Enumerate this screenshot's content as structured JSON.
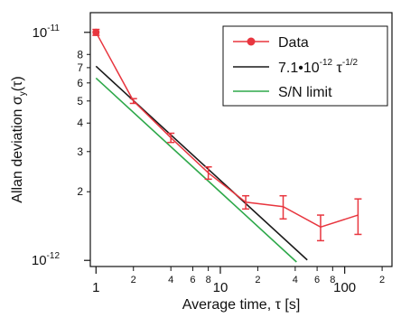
{
  "chart_data": {
    "type": "scatter",
    "xlabel_main": "Average time, ",
    "xlabel_tau": "τ",
    "xlabel_unit": " [s]",
    "ylabel_main": "Allan deviation ",
    "ylabel_sigma": "σ",
    "ylabel_sub": "y",
    "ylabel_arg": "(τ)",
    "x_scale": "log",
    "y_scale": "log",
    "xlim": [
      0.9,
      240
    ],
    "ylim": [
      9.4e-13,
      1.22e-11
    ],
    "x_ticks_major": [
      {
        "value": 1,
        "label": "1"
      },
      {
        "value": 10,
        "label": "10"
      },
      {
        "value": 100,
        "label": "100"
      }
    ],
    "x_ticks_minor": [
      {
        "value": 2,
        "label": "2"
      },
      {
        "value": 4,
        "label": "4"
      },
      {
        "value": 6,
        "label": "6"
      },
      {
        "value": 8,
        "label": "8"
      },
      {
        "value": 20,
        "label": "2"
      },
      {
        "value": 40,
        "label": "4"
      },
      {
        "value": 60,
        "label": "6"
      },
      {
        "value": 80,
        "label": "8"
      },
      {
        "value": 200,
        "label": "2"
      }
    ],
    "y_ticks_major": [
      {
        "value": 1e-12,
        "base": "10",
        "exp": "-12"
      },
      {
        "value": 1e-11,
        "base": "10",
        "exp": "-11"
      }
    ],
    "y_ticks_minor": [
      {
        "value": 2e-12,
        "label": "2"
      },
      {
        "value": 3e-12,
        "label": "3"
      },
      {
        "value": 4e-12,
        "label": "4"
      },
      {
        "value": 5e-12,
        "label": "5"
      },
      {
        "value": 6e-12,
        "label": "6"
      },
      {
        "value": 7e-12,
        "label": "7"
      },
      {
        "value": 8e-12,
        "label": "8"
      }
    ],
    "series": [
      {
        "name": "Data",
        "style": "line-markers",
        "color": "#e8363f",
        "points": [
          {
            "x": 1,
            "y": 1e-11,
            "err": 3e-13
          },
          {
            "x": 2,
            "y": 5e-12,
            "err": 1.2e-13
          },
          {
            "x": 4,
            "y": 3.45e-12,
            "err": 1.6e-13
          },
          {
            "x": 8,
            "y": 2.42e-12,
            "err": 1.5e-13
          },
          {
            "x": 16,
            "y": 1.8e-12,
            "err": 1.2e-13
          },
          {
            "x": 32,
            "y": 1.72e-12,
            "err": 2e-13
          },
          {
            "x": 64,
            "y": 1.4e-12,
            "err": 1.8e-13
          },
          {
            "x": 128,
            "y": 1.58e-12,
            "err": 2.8e-13
          }
        ]
      },
      {
        "name_prefix": "7.1•10",
        "name_exp1": "-12",
        "name_mid": " τ",
        "name_exp2": "-1/2",
        "style": "line",
        "color": "#1a1a1a",
        "fit": {
          "coefficient": 7.1e-12,
          "power": -0.5
        },
        "x_range": [
          1,
          50
        ]
      },
      {
        "name": "S/N limit",
        "style": "line",
        "color": "#2ea84a",
        "fit": {
          "coefficient": 6.3e-12,
          "power": -0.5
        },
        "x_range": [
          1,
          41
        ]
      }
    ],
    "legend": {
      "position": "top-right",
      "frame": true
    }
  }
}
